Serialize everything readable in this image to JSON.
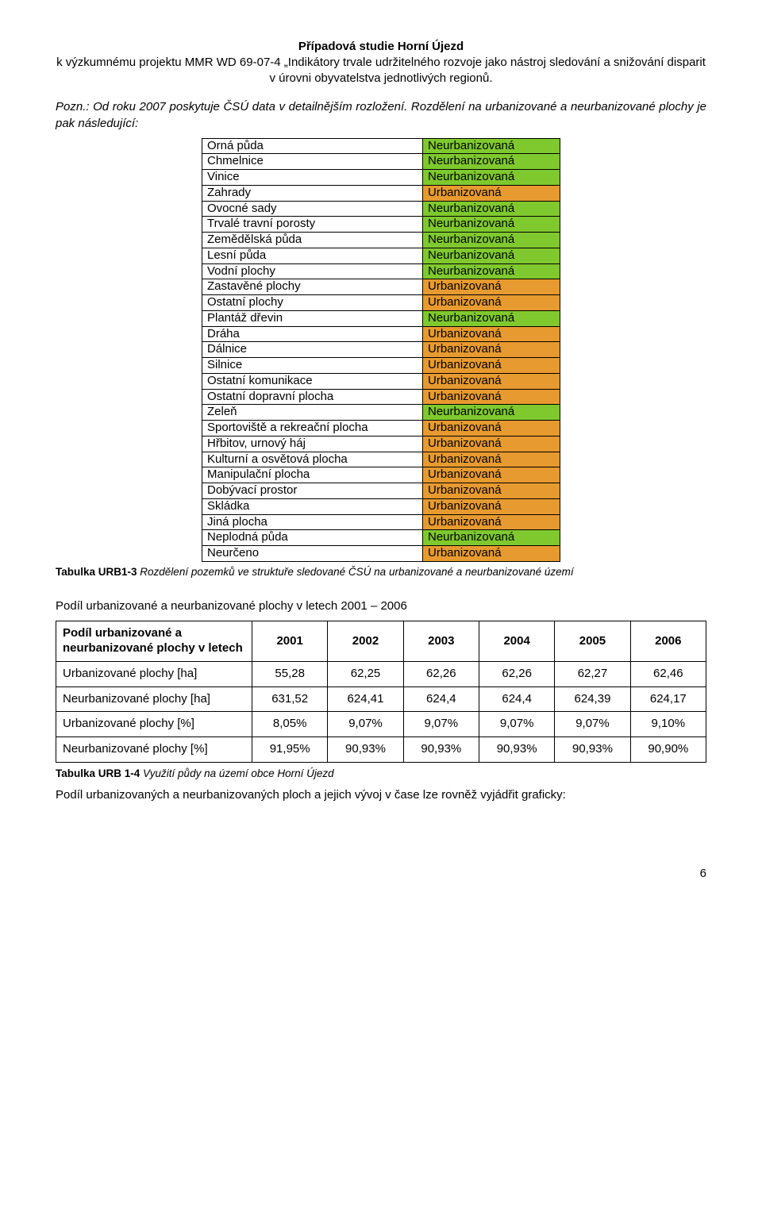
{
  "header": {
    "title": "Případová studie Horní Újezd",
    "subtitle": "k výzkumnému projektu MMR WD 69-07-4 „Indikátory trvale udržitelného rozvoje jako nástroj sledování a snižování disparit v úrovni obyvatelstva jednotlivých regionů."
  },
  "intro": "Pozn.: Od roku 2007 poskytuje ČSÚ data v detailnějším rozložení. Rozdělení na urbanizované a neurbanizované plochy je pak následující:",
  "t1": {
    "colors": {
      "green": "#7fc92e",
      "orange": "#e79a2f"
    },
    "rows": [
      {
        "label": "Orná půda",
        "value": "Neurbanizovaná",
        "bg": "green"
      },
      {
        "label": "Chmelnice",
        "value": "Neurbanizovaná",
        "bg": "green"
      },
      {
        "label": "Vinice",
        "value": "Neurbanizovaná",
        "bg": "green"
      },
      {
        "label": "Zahrady",
        "value": "Urbanizovaná",
        "bg": "orange"
      },
      {
        "label": "Ovocné sady",
        "value": "Neurbanizovaná",
        "bg": "green"
      },
      {
        "label": "Trvalé travní porosty",
        "value": "Neurbanizovaná",
        "bg": "green"
      },
      {
        "label": "Zemědělská půda",
        "value": "Neurbanizovaná",
        "bg": "green"
      },
      {
        "label": "Lesní půda",
        "value": "Neurbanizovaná",
        "bg": "green"
      },
      {
        "label": "Vodní plochy",
        "value": "Neurbanizovaná",
        "bg": "green"
      },
      {
        "label": "Zastavěné plochy",
        "value": "Urbanizovaná",
        "bg": "orange"
      },
      {
        "label": "Ostatní plochy",
        "value": "Urbanizovaná",
        "bg": "orange"
      },
      {
        "label": "Plantáž dřevin",
        "value": "Neurbanizovaná",
        "bg": "green"
      },
      {
        "label": "Dráha",
        "value": "Urbanizovaná",
        "bg": "orange"
      },
      {
        "label": "Dálnice",
        "value": "Urbanizovaná",
        "bg": "orange"
      },
      {
        "label": "Silnice",
        "value": "Urbanizovaná",
        "bg": "orange"
      },
      {
        "label": "Ostatní komunikace",
        "value": "Urbanizovaná",
        "bg": "orange"
      },
      {
        "label": "Ostatní dopravní plocha",
        "value": "Urbanizovaná",
        "bg": "orange"
      },
      {
        "label": "Zeleň",
        "value": "Neurbanizovaná",
        "bg": "green"
      },
      {
        "label": "Sportoviště a rekreační plocha",
        "value": "Urbanizovaná",
        "bg": "orange"
      },
      {
        "label": "Hřbitov, urnový háj",
        "value": "Urbanizovaná",
        "bg": "orange"
      },
      {
        "label": "Kulturní a osvětová plocha",
        "value": "Urbanizovaná",
        "bg": "orange"
      },
      {
        "label": "Manipulační plocha",
        "value": "Urbanizovaná",
        "bg": "orange"
      },
      {
        "label": "Dobývací prostor",
        "value": "Urbanizovaná",
        "bg": "orange"
      },
      {
        "label": "Skládka",
        "value": "Urbanizovaná",
        "bg": "orange"
      },
      {
        "label": "Jiná plocha",
        "value": "Urbanizovaná",
        "bg": "orange"
      },
      {
        "label": "Neplodná půda",
        "value": "Neurbanizovaná",
        "bg": "green"
      },
      {
        "label": "Neurčeno",
        "value": "Urbanizovaná",
        "bg": "orange"
      }
    ]
  },
  "caption1": {
    "bold": "Tabulka URB1-3",
    "italic": " Rozdělení pozemků ve struktuře sledované ČSÚ na urbanizované a neurbanizované území"
  },
  "sectionHead": "Podíl urbanizované a neurbanizované plochy v letech 2001 – 2006",
  "t2": {
    "headLeft": "Podíl urbanizované a neurbanizované plochy v letech",
    "years": [
      "2001",
      "2002",
      "2003",
      "2004",
      "2005",
      "2006"
    ],
    "rows": [
      {
        "label": "Urbanizované plochy [ha]",
        "cells": [
          "55,28",
          "62,25",
          "62,26",
          "62,26",
          "62,27",
          "62,46"
        ]
      },
      {
        "label": "Neurbanizované plochy [ha]",
        "cells": [
          "631,52",
          "624,41",
          "624,4",
          "624,4",
          "624,39",
          "624,17"
        ]
      },
      {
        "label": "Urbanizované plochy [%]",
        "cells": [
          "8,05%",
          "9,07%",
          "9,07%",
          "9,07%",
          "9,07%",
          "9,10%"
        ]
      },
      {
        "label": "Neurbanizované plochy [%]",
        "cells": [
          "91,95%",
          "90,93%",
          "90,93%",
          "90,93%",
          "90,93%",
          "90,90%"
        ]
      }
    ]
  },
  "caption2": {
    "bold": "Tabulka URB 1-4",
    "italic": " Využití půdy na území obce Horní Újezd"
  },
  "para": "Podíl urbanizovaných a neurbanizovaných ploch a jejich vývoj v čase lze rovněž vyjádřit graficky:",
  "pageNumber": "6"
}
